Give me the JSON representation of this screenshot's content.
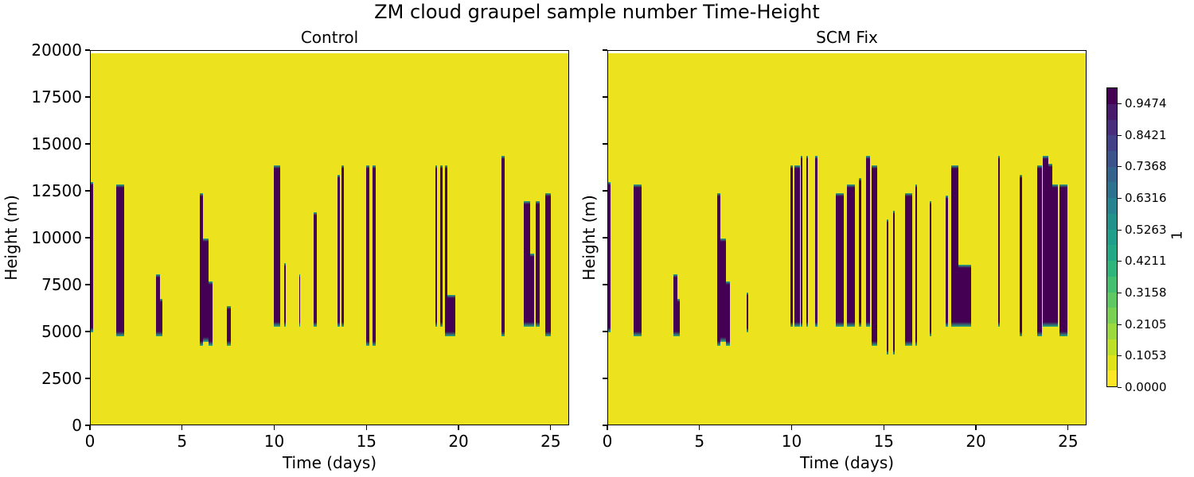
{
  "title": "ZM cloud graupel sample number Time-Height",
  "colors": {
    "background_low": "#ece31e",
    "high": "#440154",
    "edge": "#2ab07f"
  },
  "colorbar": {
    "label": "1",
    "ticks": [
      "0.0000",
      "0.1053",
      "0.2105",
      "0.3158",
      "0.4211",
      "0.5263",
      "0.6316",
      "0.7368",
      "0.8421",
      "0.9474"
    ],
    "levels": [
      "#fde725",
      "#dfe318",
      "#bddf26",
      "#9bd93c",
      "#7ad151",
      "#5ec962",
      "#44bf70",
      "#2fb47c",
      "#22a884",
      "#1f9e89",
      "#21918c",
      "#26828e",
      "#2c728e",
      "#33638d",
      "#3b528b",
      "#424086",
      "#472d7b",
      "#481a6c",
      "#440154"
    ]
  },
  "chart_data": [
    {
      "type": "heatmap",
      "title": "Control",
      "xlabel": "Time (days)",
      "ylabel": "Height (m)",
      "xlim": [
        0,
        26
      ],
      "ylim": [
        0,
        20000
      ],
      "xticks": [
        "0",
        "5",
        "10",
        "15",
        "20",
        "25"
      ],
      "yticks": [
        "0",
        "2500",
        "5000",
        "7500",
        "10000",
        "12500",
        "15000",
        "17500",
        "20000"
      ],
      "grid": false,
      "colormap": "viridis",
      "vmin": 0.0,
      "vmax": 1.0,
      "description": "Value is 0 (yellow) almost everywhere; vertical columns of value ~1 (dark purple) mark convective events, spanning roughly 4500-14000 m.",
      "events": [
        {
          "t0": 0.0,
          "t1": 0.12,
          "z0": 5000,
          "z1": 13000
        },
        {
          "t0": 1.4,
          "t1": 1.8,
          "z0": 4800,
          "z1": 12900
        },
        {
          "t0": 3.55,
          "t1": 3.75,
          "z0": 4800,
          "z1": 8100
        },
        {
          "t0": 3.75,
          "t1": 3.9,
          "z0": 4800,
          "z1": 6800
        },
        {
          "t0": 5.9,
          "t1": 6.1,
          "z0": 4300,
          "z1": 12400
        },
        {
          "t0": 6.1,
          "t1": 6.4,
          "z0": 4500,
          "z1": 10000
        },
        {
          "t0": 6.4,
          "t1": 6.6,
          "z0": 4300,
          "z1": 7700
        },
        {
          "t0": 7.4,
          "t1": 7.6,
          "z0": 4300,
          "z1": 6400
        },
        {
          "t0": 9.95,
          "t1": 10.3,
          "z0": 5300,
          "z1": 13900
        },
        {
          "t0": 10.5,
          "t1": 10.6,
          "z0": 5300,
          "z1": 8700
        },
        {
          "t0": 11.3,
          "t1": 11.38,
          "z0": 5300,
          "z1": 8100
        },
        {
          "t0": 12.1,
          "t1": 12.25,
          "z0": 5300,
          "z1": 11400
        },
        {
          "t0": 13.4,
          "t1": 13.5,
          "z0": 5300,
          "z1": 13400
        },
        {
          "t0": 13.6,
          "t1": 13.75,
          "z0": 5300,
          "z1": 13900
        },
        {
          "t0": 14.95,
          "t1": 15.1,
          "z0": 4300,
          "z1": 13900
        },
        {
          "t0": 15.3,
          "t1": 15.45,
          "z0": 4300,
          "z1": 13900
        },
        {
          "t0": 18.7,
          "t1": 18.8,
          "z0": 5300,
          "z1": 13900
        },
        {
          "t0": 18.95,
          "t1": 19.1,
          "z0": 5300,
          "z1": 13900
        },
        {
          "t0": 19.2,
          "t1": 19.35,
          "z0": 4800,
          "z1": 13900
        },
        {
          "t0": 19.35,
          "t1": 19.8,
          "z0": 4800,
          "z1": 7000
        },
        {
          "t0": 22.3,
          "t1": 22.45,
          "z0": 4800,
          "z1": 14400
        },
        {
          "t0": 23.5,
          "t1": 23.85,
          "z0": 5300,
          "z1": 12000
        },
        {
          "t0": 23.85,
          "t1": 24.05,
          "z0": 5300,
          "z1": 9200
        },
        {
          "t0": 24.15,
          "t1": 24.35,
          "z0": 5300,
          "z1": 12000
        },
        {
          "t0": 24.65,
          "t1": 24.95,
          "z0": 4800,
          "z1": 12400
        }
      ]
    },
    {
      "type": "heatmap",
      "title": "SCM Fix",
      "xlabel": "Time (days)",
      "ylabel": "Height (m)",
      "xlim": [
        0,
        26
      ],
      "ylim": [
        0,
        20000
      ],
      "xticks": [
        "0",
        "5",
        "10",
        "15",
        "20",
        "25"
      ],
      "yticks": [],
      "grid": false,
      "colormap": "viridis",
      "vmin": 0.0,
      "vmax": 1.0,
      "events": [
        {
          "t0": 0.0,
          "t1": 0.12,
          "z0": 5000,
          "z1": 13000
        },
        {
          "t0": 1.4,
          "t1": 1.8,
          "z0": 4800,
          "z1": 12900
        },
        {
          "t0": 3.55,
          "t1": 3.75,
          "z0": 4800,
          "z1": 8100
        },
        {
          "t0": 3.75,
          "t1": 3.9,
          "z0": 4800,
          "z1": 6800
        },
        {
          "t0": 5.9,
          "t1": 6.1,
          "z0": 4300,
          "z1": 12400
        },
        {
          "t0": 6.1,
          "t1": 6.4,
          "z0": 4500,
          "z1": 10000
        },
        {
          "t0": 6.4,
          "t1": 6.6,
          "z0": 4300,
          "z1": 7700
        },
        {
          "t0": 7.5,
          "t1": 7.6,
          "z0": 5000,
          "z1": 7100
        },
        {
          "t0": 9.9,
          "t1": 10.0,
          "z0": 5300,
          "z1": 13900
        },
        {
          "t0": 10.1,
          "t1": 10.4,
          "z0": 5300,
          "z1": 13900
        },
        {
          "t0": 10.45,
          "t1": 10.55,
          "z0": 5300,
          "z1": 14400
        },
        {
          "t0": 10.75,
          "t1": 10.85,
          "z0": 5300,
          "z1": 14400
        },
        {
          "t0": 11.25,
          "t1": 11.35,
          "z0": 5300,
          "z1": 14400
        },
        {
          "t0": 12.35,
          "t1": 12.8,
          "z0": 5300,
          "z1": 12400
        },
        {
          "t0": 12.95,
          "t1": 13.4,
          "z0": 5300,
          "z1": 12900
        },
        {
          "t0": 13.6,
          "t1": 13.75,
          "z0": 5300,
          "z1": 13200
        },
        {
          "t0": 14.0,
          "t1": 14.2,
          "z0": 5300,
          "z1": 14400
        },
        {
          "t0": 14.3,
          "t1": 14.6,
          "z0": 4300,
          "z1": 13900
        },
        {
          "t0": 15.1,
          "t1": 15.2,
          "z0": 3800,
          "z1": 11000
        },
        {
          "t0": 15.45,
          "t1": 15.55,
          "z0": 3800,
          "z1": 11500
        },
        {
          "t0": 16.1,
          "t1": 16.5,
          "z0": 4300,
          "z1": 12400
        },
        {
          "t0": 16.65,
          "t1": 16.75,
          "z0": 4300,
          "z1": 12900
        },
        {
          "t0": 17.45,
          "t1": 17.55,
          "z0": 4800,
          "z1": 12000
        },
        {
          "t0": 18.3,
          "t1": 18.45,
          "z0": 5300,
          "z1": 12300
        },
        {
          "t0": 18.6,
          "t1": 19.0,
          "z0": 5300,
          "z1": 13900
        },
        {
          "t0": 19.0,
          "t1": 19.7,
          "z0": 5300,
          "z1": 8600
        },
        {
          "t0": 21.15,
          "t1": 21.25,
          "z0": 5300,
          "z1": 14400
        },
        {
          "t0": 22.35,
          "t1": 22.45,
          "z0": 4800,
          "z1": 13400
        },
        {
          "t0": 23.3,
          "t1": 23.55,
          "z0": 4800,
          "z1": 13900
        },
        {
          "t0": 23.6,
          "t1": 23.9,
          "z0": 5300,
          "z1": 14400
        },
        {
          "t0": 23.9,
          "t1": 24.1,
          "z0": 5300,
          "z1": 14000
        },
        {
          "t0": 24.1,
          "t1": 24.4,
          "z0": 5300,
          "z1": 12900
        },
        {
          "t0": 24.5,
          "t1": 24.9,
          "z0": 4800,
          "z1": 12900
        }
      ]
    }
  ]
}
